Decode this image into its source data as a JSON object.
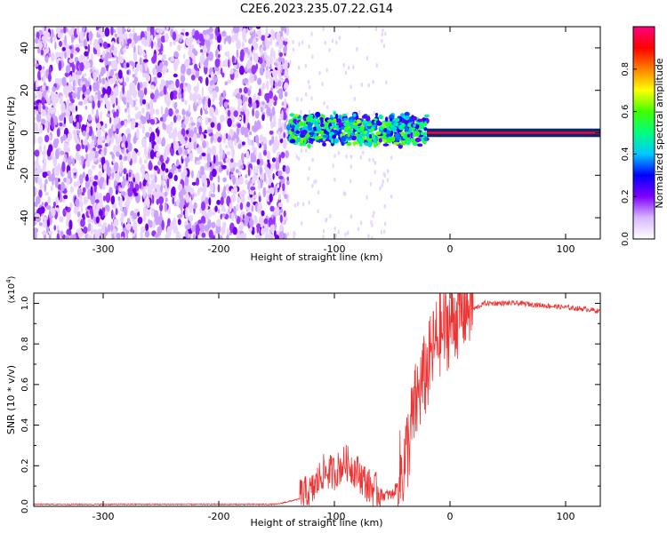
{
  "figure": {
    "title": "C2E6.2023.235.07.22.G14"
  },
  "chart_data": [
    {
      "type": "heatmap",
      "xlabel": "Height of straight line (km)",
      "ylabel": "Frequency (Hz)",
      "xlim": [
        -360,
        130
      ],
      "ylim": [
        -50,
        50
      ],
      "x_ticks": [
        -300,
        -200,
        -100,
        0,
        100
      ],
      "y_ticks": [
        -40,
        -20,
        0,
        20,
        40
      ],
      "colorbar": {
        "label": "Normalized spectral amplitude",
        "range": [
          0.0,
          1.0
        ],
        "ticks": [
          "0.0",
          "0.2",
          "0.4",
          "0.6",
          "0.8"
        ],
        "colormap": [
          "#ffffff",
          "#d8b8ff",
          "#8000ff",
          "#0000ff",
          "#00c8ff",
          "#00ff80",
          "#40ff00",
          "#ffff00",
          "#ff8000",
          "#ff0000",
          "#ff0080"
        ]
      },
      "regions": [
        {
          "x_range": [
            -360,
            -140
          ],
          "freq_range": [
            -50,
            50
          ],
          "amplitude": 0.05,
          "pattern": "broadband noise"
        },
        {
          "x_range": [
            -140,
            -20
          ],
          "freq_range": [
            -8,
            8
          ],
          "amplitude": 0.35,
          "pattern": "fluctuating narrowband signal"
        },
        {
          "x_range": [
            -20,
            130
          ],
          "freq_range": [
            -1,
            1
          ],
          "amplitude": 0.95,
          "pattern": "steady carrier near 0 Hz"
        }
      ]
    },
    {
      "type": "line",
      "xlabel": "Height of straight line (km)",
      "ylabel": "SNR (10 * v/v)",
      "scale_label": "(x10",
      "scale_exp": "4",
      "ylabel_full": "SNR (10 * v/v) (x10^4)",
      "xlim": [
        -360,
        130
      ],
      "ylim": [
        0,
        1.05
      ],
      "x_ticks": [
        -300,
        -200,
        -100,
        0,
        100
      ],
      "y_ticks": [
        "0.0",
        "0.2",
        "0.4",
        "0.6",
        "0.8",
        "1.0"
      ],
      "line_color": "#ee3333",
      "series": [
        {
          "x": [
            -360,
            -300,
            -250,
            -200,
            -150,
            -120,
            -110,
            -100,
            -90,
            -80,
            -70,
            -60,
            -50,
            -40,
            -35,
            -30,
            -25,
            -20,
            -15,
            -10,
            -5,
            0,
            10,
            20,
            30,
            40,
            60,
            80,
            100,
            120,
            130
          ],
          "values": [
            0.01,
            0.01,
            0.01,
            0.01,
            0.01,
            0.05,
            0.15,
            0.15,
            0.2,
            0.15,
            0.08,
            0.05,
            0.05,
            0.15,
            0.3,
            0.45,
            0.55,
            0.62,
            0.72,
            0.8,
            0.82,
            0.86,
            0.92,
            0.97,
            1.0,
            1.0,
            1.0,
            0.99,
            0.98,
            0.97,
            0.96
          ]
        }
      ]
    }
  ]
}
